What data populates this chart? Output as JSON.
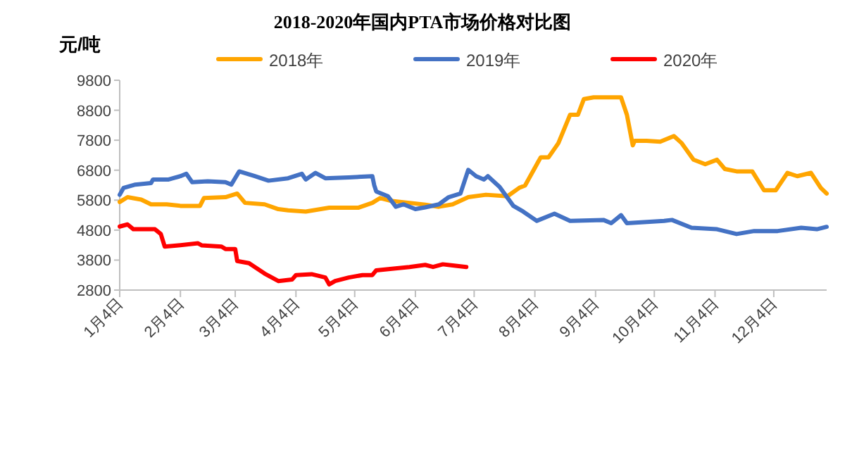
{
  "chart_data": {
    "type": "line",
    "title": "2018-2020年国内PTA市场价格对比图",
    "ylabel": "元/吨",
    "xlim": [
      "--01-04",
      "--12-31"
    ],
    "xticks": [
      {
        "value": "--01-04",
        "label": "1月4日"
      },
      {
        "value": "--02-04",
        "label": "2月4日"
      },
      {
        "value": "--03-04",
        "label": "3月4日"
      },
      {
        "value": "--04-04",
        "label": "4月4日"
      },
      {
        "value": "--05-04",
        "label": "5月4日"
      },
      {
        "value": "--06-04",
        "label": "6月4日"
      },
      {
        "value": "--07-04",
        "label": "7月4日"
      },
      {
        "value": "--08-04",
        "label": "8月4日"
      },
      {
        "value": "--09-04",
        "label": "9月4日"
      },
      {
        "value": "--10-04",
        "label": "10月4日"
      },
      {
        "value": "--11-04",
        "label": "11月4日"
      },
      {
        "value": "--12-04",
        "label": "12月4日"
      }
    ],
    "ylim": [
      2800,
      9800
    ],
    "yticks": [
      2800,
      3800,
      4800,
      5800,
      6800,
      7800,
      8800,
      9800
    ],
    "grid": false,
    "legend": "top",
    "marker": "none",
    "line_style": "solid",
    "series": [
      {
        "name": "2018年",
        "color": "#ffa500",
        "x": [
          "--01-04",
          "--01-08",
          "--01-15",
          "--01-20",
          "--01-28",
          "--02-04",
          "--02-14",
          "--02-16",
          "--02-27",
          "--03-05",
          "--03-09",
          "--03-19",
          "--03-26",
          "--03-31",
          "--04-09",
          "--04-21",
          "--05-06",
          "--05-13",
          "--05-17",
          "--05-23",
          "--06-01",
          "--06-09",
          "--06-16",
          "--06-23",
          "--07-01",
          "--07-10",
          "--07-21",
          "--07-27",
          "--07-30",
          "--08-07",
          "--08-11",
          "--08-16",
          "--08-22",
          "--08-26",
          "--08-29",
          "--09-03",
          "--09-17",
          "--09-20",
          "--09-23",
          "--09-24",
          "--09-30",
          "--10-07",
          "--10-14",
          "--10-18",
          "--10-24",
          "--10-30",
          "--11-05",
          "--11-09",
          "--11-15",
          "--11-23",
          "--11-29",
          "--12-05",
          "--12-11",
          "--12-16",
          "--12-23",
          "--12-28",
          "--12-31"
        ],
        "values": [
          5740,
          5900,
          5820,
          5660,
          5660,
          5610,
          5610,
          5870,
          5900,
          6020,
          5710,
          5660,
          5500,
          5460,
          5420,
          5550,
          5550,
          5710,
          5870,
          5770,
          5710,
          5650,
          5580,
          5660,
          5900,
          5980,
          5930,
          6210,
          6290,
          7230,
          7230,
          7700,
          8650,
          8650,
          9170,
          9230,
          9230,
          8650,
          7630,
          7780,
          7780,
          7750,
          7940,
          7700,
          7150,
          7000,
          7150,
          6840,
          6760,
          6760,
          6130,
          6130,
          6710,
          6600,
          6710,
          6210,
          6020
        ]
      },
      {
        "name": "2019年",
        "color": "#4472c4",
        "x": [
          "--01-04",
          "--01-06",
          "--01-12",
          "--01-20",
          "--01-21",
          "--01-29",
          "--02-04",
          "--02-07",
          "--02-10",
          "--02-18",
          "--02-27",
          "--03-02",
          "--03-06",
          "--03-14",
          "--03-21",
          "--03-31",
          "--04-07",
          "--04-09",
          "--04-14",
          "--04-19",
          "--05-01",
          "--05-13",
          "--05-14",
          "--05-15",
          "--05-21",
          "--05-25",
          "--05-29",
          "--06-04",
          "--06-09",
          "--06-16",
          "--06-21",
          "--06-27",
          "--07-01",
          "--07-05",
          "--07-09",
          "--07-11",
          "--07-17",
          "--07-24",
          "--07-29",
          "--08-05",
          "--08-14",
          "--08-22",
          "--09-08",
          "--09-12",
          "--09-17",
          "--09-20",
          "--10-09",
          "--10-13",
          "--10-23",
          "--11-05",
          "--11-15",
          "--11-24",
          "--12-06",
          "--12-18",
          "--12-26",
          "--12-31"
        ],
        "values": [
          5980,
          6210,
          6320,
          6370,
          6490,
          6490,
          6600,
          6680,
          6400,
          6430,
          6400,
          6320,
          6760,
          6600,
          6450,
          6530,
          6680,
          6490,
          6710,
          6530,
          6560,
          6600,
          6290,
          6090,
          5930,
          5580,
          5660,
          5500,
          5560,
          5660,
          5900,
          6020,
          6810,
          6600,
          6490,
          6600,
          6240,
          5610,
          5420,
          5110,
          5350,
          5110,
          5140,
          5030,
          5300,
          5030,
          5110,
          5140,
          4880,
          4830,
          4670,
          4770,
          4770,
          4880,
          4830,
          4910
        ]
      },
      {
        "name": "2020年",
        "color": "#ff0000",
        "x": [
          "--01-04",
          "--01-08",
          "--01-11",
          "--01-22",
          "--01-25",
          "--01-27",
          "--02-03",
          "--02-13",
          "--02-15",
          "--02-25",
          "--02-27",
          "--03-04",
          "--03-05",
          "--03-11",
          "--03-19",
          "--03-26",
          "--04-02",
          "--04-04",
          "--04-12",
          "--04-19",
          "--04-21",
          "--04-24",
          "--05-01",
          "--05-08",
          "--05-13",
          "--05-15",
          "--05-23",
          "--06-01",
          "--06-09",
          "--06-13",
          "--06-18",
          "--06-23",
          "--06-30"
        ],
        "values": [
          4920,
          4990,
          4830,
          4830,
          4670,
          4250,
          4290,
          4360,
          4290,
          4250,
          4170,
          4170,
          3770,
          3700,
          3350,
          3100,
          3150,
          3300,
          3330,
          3220,
          2990,
          3100,
          3220,
          3300,
          3300,
          3460,
          3510,
          3570,
          3640,
          3570,
          3660,
          3620,
          3570
        ]
      }
    ]
  }
}
